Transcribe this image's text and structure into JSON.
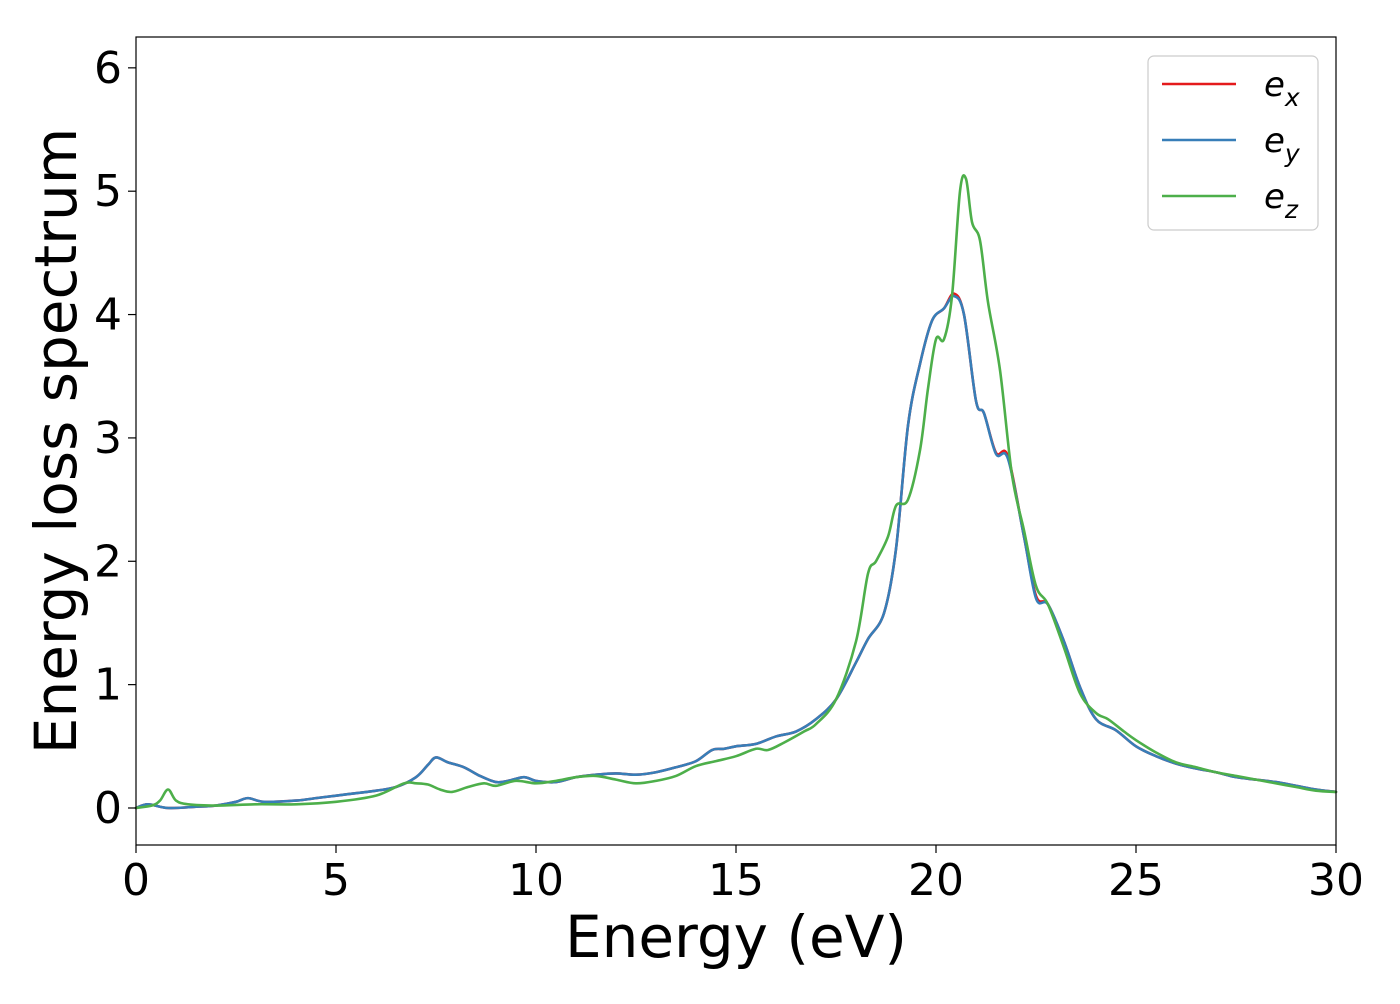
{
  "chart_data": {
    "type": "line",
    "xlabel": "Energy (eV)",
    "ylabel": "Energy loss spectrum",
    "xlim": [
      0,
      30
    ],
    "ylim": [
      -0.3,
      6.25
    ],
    "xticks": [
      0,
      5,
      10,
      15,
      20,
      25,
      30
    ],
    "yticks": [
      0,
      1,
      2,
      3,
      4,
      5,
      6
    ],
    "grid": false,
    "legend_position": "top-right",
    "colors": {
      "ex": "#e41a1c",
      "ey": "#377eb8",
      "ez": "#4daf4a"
    },
    "series": [
      {
        "key": "ex",
        "name": "e_x",
        "legend_base": "e",
        "legend_sub": "x",
        "color": "#e41a1c",
        "x": [
          0,
          0.3,
          0.8,
          1.5,
          2.0,
          2.5,
          2.8,
          3.2,
          4.0,
          4.5,
          5.0,
          5.5,
          6.0,
          6.5,
          7.0,
          7.3,
          7.5,
          7.8,
          8.2,
          8.6,
          9.0,
          9.3,
          9.7,
          10.0,
          10.5,
          11.0,
          11.5,
          12.0,
          12.5,
          13.0,
          13.5,
          14.0,
          14.4,
          14.7,
          15.0,
          15.5,
          16.0,
          16.5,
          17.0,
          17.5,
          18.0,
          18.3,
          18.7,
          19.0,
          19.3,
          19.6,
          19.9,
          20.2,
          20.45,
          20.7,
          21.0,
          21.2,
          21.5,
          21.8,
          22.2,
          22.5,
          22.8,
          23.2,
          23.6,
          24.0,
          24.5,
          25.0,
          25.5,
          26.0,
          26.5,
          27.0,
          27.5,
          28.0,
          28.5,
          29.0,
          29.5,
          30.0
        ],
        "y": [
          0.0,
          0.03,
          0.0,
          0.01,
          0.02,
          0.05,
          0.08,
          0.05,
          0.06,
          0.08,
          0.1,
          0.12,
          0.14,
          0.17,
          0.25,
          0.35,
          0.41,
          0.37,
          0.33,
          0.26,
          0.21,
          0.22,
          0.25,
          0.22,
          0.21,
          0.25,
          0.27,
          0.28,
          0.27,
          0.29,
          0.33,
          0.38,
          0.47,
          0.48,
          0.5,
          0.52,
          0.58,
          0.62,
          0.72,
          0.88,
          1.18,
          1.37,
          1.58,
          2.1,
          3.1,
          3.6,
          3.95,
          4.05,
          4.17,
          4.0,
          3.3,
          3.2,
          2.88,
          2.85,
          2.2,
          1.72,
          1.65,
          1.35,
          0.98,
          0.72,
          0.63,
          0.5,
          0.42,
          0.36,
          0.32,
          0.29,
          0.25,
          0.23,
          0.21,
          0.18,
          0.15,
          0.13
        ]
      },
      {
        "key": "ey",
        "name": "e_y",
        "legend_base": "e",
        "legend_sub": "y",
        "color": "#377eb8",
        "x": [
          0,
          0.3,
          0.8,
          1.5,
          2.0,
          2.5,
          2.8,
          3.2,
          4.0,
          4.5,
          5.0,
          5.5,
          6.0,
          6.5,
          7.0,
          7.3,
          7.5,
          7.8,
          8.2,
          8.6,
          9.0,
          9.3,
          9.7,
          10.0,
          10.5,
          11.0,
          11.5,
          12.0,
          12.5,
          13.0,
          13.5,
          14.0,
          14.4,
          14.7,
          15.0,
          15.5,
          16.0,
          16.5,
          17.0,
          17.5,
          18.0,
          18.3,
          18.7,
          19.0,
          19.3,
          19.6,
          19.9,
          20.2,
          20.45,
          20.7,
          21.0,
          21.2,
          21.5,
          21.8,
          22.2,
          22.5,
          22.8,
          23.2,
          23.6,
          24.0,
          24.5,
          25.0,
          25.5,
          26.0,
          26.5,
          27.0,
          27.5,
          28.0,
          28.5,
          29.0,
          29.5,
          30.0
        ],
        "y": [
          0.0,
          0.03,
          0.0,
          0.01,
          0.02,
          0.05,
          0.08,
          0.05,
          0.06,
          0.08,
          0.1,
          0.12,
          0.14,
          0.17,
          0.25,
          0.35,
          0.41,
          0.37,
          0.33,
          0.26,
          0.21,
          0.22,
          0.25,
          0.22,
          0.21,
          0.25,
          0.27,
          0.28,
          0.27,
          0.29,
          0.33,
          0.38,
          0.47,
          0.48,
          0.5,
          0.52,
          0.58,
          0.62,
          0.72,
          0.88,
          1.18,
          1.37,
          1.58,
          2.1,
          3.1,
          3.6,
          3.95,
          4.05,
          4.15,
          4.0,
          3.3,
          3.2,
          2.87,
          2.83,
          2.2,
          1.7,
          1.65,
          1.35,
          0.98,
          0.72,
          0.63,
          0.5,
          0.42,
          0.36,
          0.32,
          0.29,
          0.25,
          0.23,
          0.21,
          0.18,
          0.15,
          0.13
        ]
      },
      {
        "key": "ez",
        "name": "e_z",
        "legend_base": "e",
        "legend_sub": "z",
        "color": "#4daf4a",
        "x": [
          0,
          0.4,
          0.6,
          0.8,
          1.0,
          1.3,
          2.0,
          3.0,
          4.0,
          5.0,
          6.0,
          6.7,
          7.0,
          7.3,
          7.6,
          7.9,
          8.3,
          8.7,
          9.0,
          9.5,
          10.0,
          10.5,
          11.0,
          11.5,
          12.0,
          12.5,
          13.0,
          13.5,
          14.0,
          14.5,
          15.0,
          15.5,
          15.8,
          16.2,
          16.7,
          17.0,
          17.5,
          18.0,
          18.3,
          18.5,
          18.8,
          19.0,
          19.3,
          19.6,
          19.8,
          20.0,
          20.2,
          20.4,
          20.6,
          20.75,
          20.9,
          21.1,
          21.3,
          21.6,
          21.9,
          22.2,
          22.5,
          22.8,
          23.2,
          23.6,
          24.0,
          24.3,
          24.7,
          25.0,
          25.5,
          26.0,
          26.5,
          27.0,
          27.5,
          28.0,
          28.5,
          29.0,
          29.5,
          30.0
        ],
        "y": [
          0.0,
          0.02,
          0.06,
          0.15,
          0.06,
          0.03,
          0.02,
          0.03,
          0.03,
          0.05,
          0.1,
          0.2,
          0.2,
          0.19,
          0.15,
          0.13,
          0.17,
          0.2,
          0.18,
          0.22,
          0.2,
          0.22,
          0.25,
          0.26,
          0.23,
          0.2,
          0.22,
          0.26,
          0.34,
          0.38,
          0.42,
          0.48,
          0.47,
          0.53,
          0.62,
          0.68,
          0.88,
          1.35,
          1.9,
          2.0,
          2.2,
          2.45,
          2.5,
          2.9,
          3.4,
          3.8,
          3.8,
          4.15,
          5.0,
          5.1,
          4.75,
          4.6,
          4.1,
          3.55,
          2.7,
          2.25,
          1.8,
          1.65,
          1.3,
          0.93,
          0.77,
          0.72,
          0.62,
          0.55,
          0.45,
          0.37,
          0.33,
          0.29,
          0.26,
          0.23,
          0.2,
          0.17,
          0.14,
          0.13
        ]
      }
    ]
  }
}
